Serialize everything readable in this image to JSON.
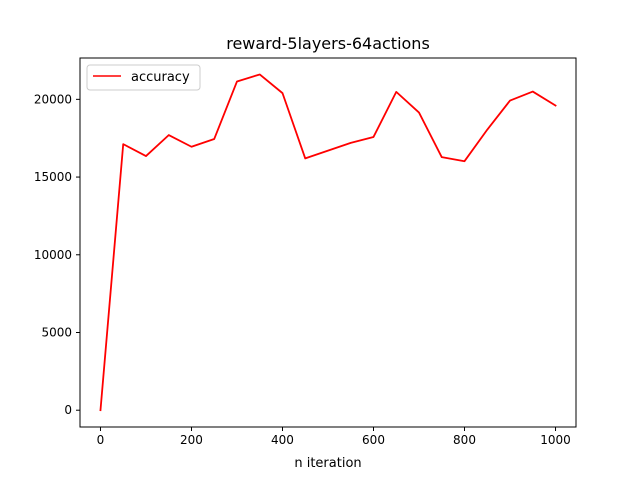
{
  "chart_data": {
    "type": "line",
    "title": "reward-5layers-64actions",
    "xlabel": "n iteration",
    "ylabel": "",
    "xlim": [
      -45,
      1045
    ],
    "ylim": [
      -1080,
      22660
    ],
    "xticks": [
      0,
      200,
      400,
      600,
      800,
      1000
    ],
    "yticks": [
      0,
      5000,
      10000,
      15000,
      20000
    ],
    "grid": false,
    "legend_position": "top-left",
    "series": [
      {
        "name": "accuracy",
        "color": "#ff0000",
        "x": [
          0,
          50,
          100,
          150,
          200,
          250,
          300,
          350,
          400,
          450,
          500,
          550,
          600,
          650,
          700,
          750,
          800,
          850,
          900,
          950,
          1000
        ],
        "y": [
          0,
          17120,
          16350,
          17700,
          16950,
          17450,
          21150,
          21600,
          20400,
          16200,
          16700,
          17200,
          17580,
          20480,
          19150,
          16280,
          16020,
          18050,
          19920,
          20500,
          19600
        ]
      }
    ]
  }
}
